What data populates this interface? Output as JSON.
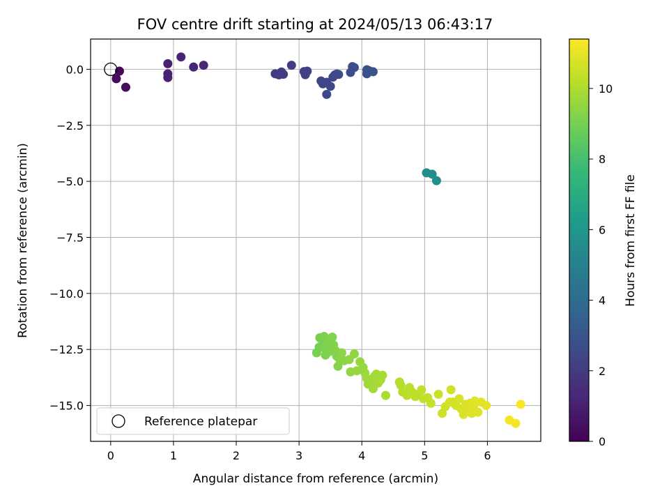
{
  "chart_data": {
    "type": "scatter",
    "title": "FOV centre drift starting at 2024/05/13 06:43:17",
    "xlabel": "Angular distance from reference (arcmin)",
    "ylabel": "Rotation from reference (arcmin)",
    "xlim": [
      -0.32,
      6.85
    ],
    "ylim": [
      -16.6,
      1.35
    ],
    "xticks": [
      0,
      1,
      2,
      3,
      4,
      5,
      6
    ],
    "yticks": [
      0.0,
      -2.5,
      -5.0,
      -7.5,
      -10.0,
      -12.5,
      -15.0
    ],
    "grid": true,
    "legend": {
      "placement": "lower-left",
      "entries": [
        "Reference platepar"
      ]
    },
    "reference_point": {
      "x": 0.0,
      "y": 0.0
    },
    "colorbar": {
      "label": "Hours from first FF file",
      "min": 0,
      "max": 11.4,
      "ticks": [
        0,
        2,
        4,
        6,
        8,
        10
      ],
      "colormap": "viridis",
      "stops": [
        "#440154",
        "#482878",
        "#3e4989",
        "#31688e",
        "#26828e",
        "#1f9e89",
        "#35b779",
        "#6ece58",
        "#b5de2b",
        "#fde725"
      ]
    },
    "points": [
      {
        "x": 0.14,
        "y": -0.08,
        "h": 0.2
      },
      {
        "x": 0.09,
        "y": -0.42,
        "h": 0.3
      },
      {
        "x": 0.24,
        "y": -0.8,
        "h": 0.4
      },
      {
        "x": 0.91,
        "y": 0.25,
        "h": 1.0
      },
      {
        "x": 0.91,
        "y": -0.2,
        "h": 1.05
      },
      {
        "x": 0.91,
        "y": -0.37,
        "h": 1.1
      },
      {
        "x": 1.12,
        "y": 0.55,
        "h": 1.15
      },
      {
        "x": 1.32,
        "y": 0.1,
        "h": 1.2
      },
      {
        "x": 1.48,
        "y": 0.18,
        "h": 1.25
      },
      {
        "x": 2.62,
        "y": -0.2,
        "h": 2.0
      },
      {
        "x": 2.68,
        "y": -0.25,
        "h": 2.02
      },
      {
        "x": 2.72,
        "y": -0.12,
        "h": 2.05
      },
      {
        "x": 2.75,
        "y": -0.22,
        "h": 2.08
      },
      {
        "x": 2.88,
        "y": 0.18,
        "h": 2.1
      },
      {
        "x": 3.08,
        "y": -0.1,
        "h": 2.2
      },
      {
        "x": 3.13,
        "y": -0.08,
        "h": 2.22
      },
      {
        "x": 3.1,
        "y": -0.24,
        "h": 2.25
      },
      {
        "x": 3.35,
        "y": -0.52,
        "h": 2.4
      },
      {
        "x": 3.38,
        "y": -0.65,
        "h": 2.42
      },
      {
        "x": 3.44,
        "y": -0.58,
        "h": 2.45
      },
      {
        "x": 3.44,
        "y": -1.12,
        "h": 2.48
      },
      {
        "x": 3.5,
        "y": -0.76,
        "h": 2.5
      },
      {
        "x": 3.54,
        "y": -0.35,
        "h": 2.52
      },
      {
        "x": 3.57,
        "y": -0.25,
        "h": 2.55
      },
      {
        "x": 3.6,
        "y": -0.21,
        "h": 2.58
      },
      {
        "x": 3.63,
        "y": -0.23,
        "h": 2.6
      },
      {
        "x": 3.82,
        "y": -0.14,
        "h": 2.7
      },
      {
        "x": 3.85,
        "y": 0.12,
        "h": 2.75
      },
      {
        "x": 3.88,
        "y": 0.08,
        "h": 2.78
      },
      {
        "x": 4.08,
        "y": -0.02,
        "h": 2.85
      },
      {
        "x": 4.12,
        "y": -0.07,
        "h": 2.9
      },
      {
        "x": 4.08,
        "y": -0.2,
        "h": 2.88
      },
      {
        "x": 4.18,
        "y": -0.11,
        "h": 2.95
      },
      {
        "x": 5.03,
        "y": -4.62,
        "h": 5.5
      },
      {
        "x": 5.12,
        "y": -4.68,
        "h": 5.55
      },
      {
        "x": 5.19,
        "y": -4.97,
        "h": 5.6
      },
      {
        "x": 3.28,
        "y": -12.65,
        "h": 9.0
      },
      {
        "x": 3.32,
        "y": -12.4,
        "h": 9.0
      },
      {
        "x": 3.33,
        "y": -11.98,
        "h": 9.05
      },
      {
        "x": 3.37,
        "y": -12.1,
        "h": 9.05
      },
      {
        "x": 3.4,
        "y": -11.92,
        "h": 9.1
      },
      {
        "x": 3.42,
        "y": -12.5,
        "h": 9.1
      },
      {
        "x": 3.42,
        "y": -12.75,
        "h": 9.1
      },
      {
        "x": 3.45,
        "y": -12.2,
        "h": 9.15
      },
      {
        "x": 3.48,
        "y": -12.6,
        "h": 9.15
      },
      {
        "x": 3.5,
        "y": -12.05,
        "h": 9.2
      },
      {
        "x": 3.5,
        "y": -12.35,
        "h": 9.2
      },
      {
        "x": 3.53,
        "y": -11.95,
        "h": 9.2
      },
      {
        "x": 3.55,
        "y": -12.3,
        "h": 9.25
      },
      {
        "x": 3.58,
        "y": -12.55,
        "h": 9.25
      },
      {
        "x": 3.6,
        "y": -12.8,
        "h": 9.3
      },
      {
        "x": 3.62,
        "y": -13.25,
        "h": 9.3
      },
      {
        "x": 3.65,
        "y": -12.95,
        "h": 9.35
      },
      {
        "x": 3.68,
        "y": -12.65,
        "h": 9.35
      },
      {
        "x": 3.72,
        "y": -13.0,
        "h": 9.4
      },
      {
        "x": 3.8,
        "y": -12.95,
        "h": 9.45
      },
      {
        "x": 3.82,
        "y": -13.5,
        "h": 9.5
      },
      {
        "x": 3.88,
        "y": -12.7,
        "h": 9.5
      },
      {
        "x": 3.92,
        "y": -13.45,
        "h": 9.55
      },
      {
        "x": 3.97,
        "y": -13.05,
        "h": 9.6
      },
      {
        "x": 4.02,
        "y": -13.3,
        "h": 9.6
      },
      {
        "x": 4.05,
        "y": -13.55,
        "h": 9.65
      },
      {
        "x": 4.08,
        "y": -13.8,
        "h": 9.7
      },
      {
        "x": 4.1,
        "y": -14.05,
        "h": 9.7
      },
      {
        "x": 4.15,
        "y": -13.95,
        "h": 9.75
      },
      {
        "x": 4.18,
        "y": -14.25,
        "h": 9.8
      },
      {
        "x": 4.2,
        "y": -13.7,
        "h": 9.8
      },
      {
        "x": 4.23,
        "y": -13.6,
        "h": 9.85
      },
      {
        "x": 4.26,
        "y": -14.0,
        "h": 9.85
      },
      {
        "x": 4.3,
        "y": -13.85,
        "h": 9.9
      },
      {
        "x": 4.33,
        "y": -13.65,
        "h": 9.9
      },
      {
        "x": 4.38,
        "y": -14.55,
        "h": 9.95
      },
      {
        "x": 4.6,
        "y": -13.95,
        "h": 10.1
      },
      {
        "x": 4.62,
        "y": -14.1,
        "h": 10.1
      },
      {
        "x": 4.65,
        "y": -14.4,
        "h": 10.15
      },
      {
        "x": 4.72,
        "y": -14.55,
        "h": 10.2
      },
      {
        "x": 4.76,
        "y": -14.2,
        "h": 10.2
      },
      {
        "x": 4.8,
        "y": -14.4,
        "h": 10.25
      },
      {
        "x": 4.85,
        "y": -14.6,
        "h": 10.3
      },
      {
        "x": 4.9,
        "y": -14.5,
        "h": 10.3
      },
      {
        "x": 4.95,
        "y": -14.3,
        "h": 10.35
      },
      {
        "x": 4.98,
        "y": -14.7,
        "h": 10.35
      },
      {
        "x": 5.05,
        "y": -14.65,
        "h": 10.4
      },
      {
        "x": 5.1,
        "y": -14.9,
        "h": 10.4
      },
      {
        "x": 5.22,
        "y": -14.5,
        "h": 10.5
      },
      {
        "x": 5.28,
        "y": -15.35,
        "h": 10.55
      },
      {
        "x": 5.33,
        "y": -15.05,
        "h": 10.55
      },
      {
        "x": 5.4,
        "y": -14.85,
        "h": 10.6
      },
      {
        "x": 5.42,
        "y": -14.3,
        "h": 10.6
      },
      {
        "x": 5.45,
        "y": -14.85,
        "h": 10.65
      },
      {
        "x": 5.5,
        "y": -15.0,
        "h": 10.65
      },
      {
        "x": 5.55,
        "y": -14.7,
        "h": 10.7
      },
      {
        "x": 5.58,
        "y": -15.15,
        "h": 10.7
      },
      {
        "x": 5.62,
        "y": -15.4,
        "h": 10.75
      },
      {
        "x": 5.65,
        "y": -14.95,
        "h": 10.75
      },
      {
        "x": 5.68,
        "y": -15.2,
        "h": 10.8
      },
      {
        "x": 5.72,
        "y": -14.9,
        "h": 10.8
      },
      {
        "x": 5.75,
        "y": -15.35,
        "h": 10.85
      },
      {
        "x": 5.78,
        "y": -15.05,
        "h": 10.85
      },
      {
        "x": 5.8,
        "y": -14.8,
        "h": 10.9
      },
      {
        "x": 5.85,
        "y": -15.3,
        "h": 10.9
      },
      {
        "x": 5.9,
        "y": -14.85,
        "h": 10.95
      },
      {
        "x": 5.98,
        "y": -15.0,
        "h": 10.95
      },
      {
        "x": 6.35,
        "y": -15.65,
        "h": 11.2
      },
      {
        "x": 6.45,
        "y": -15.8,
        "h": 11.25
      },
      {
        "x": 6.53,
        "y": -14.95,
        "h": 11.3
      }
    ]
  }
}
